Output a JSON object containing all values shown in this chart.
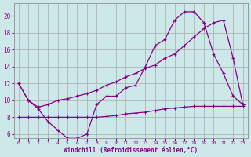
{
  "xlabel": "Windchill (Refroidissement éolien,°C)",
  "bg_color": "#cce8e8",
  "grid_color": "#aaaaaa",
  "line_color": "#880088",
  "xlim": [
    -0.5,
    23.5
  ],
  "ylim": [
    5.5,
    21.5
  ],
  "yticks": [
    6,
    8,
    10,
    12,
    14,
    16,
    18,
    20
  ],
  "xticks": [
    0,
    1,
    2,
    3,
    4,
    5,
    6,
    7,
    8,
    9,
    10,
    11,
    12,
    13,
    14,
    15,
    16,
    17,
    18,
    19,
    20,
    21,
    22,
    23
  ],
  "curve1_x": [
    0,
    1,
    2,
    3,
    4,
    5,
    6,
    7,
    8,
    9,
    10,
    11,
    12,
    13,
    14,
    15,
    16,
    17,
    18,
    19,
    20,
    21,
    22,
    23
  ],
  "curve1_y": [
    12,
    10,
    9,
    7.5,
    6.5,
    5.5,
    5.5,
    6.0,
    9.5,
    10.5,
    10.5,
    11.5,
    11.8,
    14,
    16.5,
    17.2,
    19.5,
    20.5,
    20.5,
    19.2,
    15.5,
    13.2,
    10.5,
    9.5
  ],
  "curve2_x": [
    0,
    1,
    2,
    3,
    4,
    5,
    6,
    7,
    8,
    9,
    10,
    11,
    12,
    13,
    14,
    15,
    16,
    17,
    18,
    19,
    20,
    21,
    22,
    23
  ],
  "curve2_y": [
    12,
    10,
    9.2,
    9.5,
    10.0,
    10.2,
    10.5,
    10.8,
    11.2,
    11.8,
    12.2,
    12.8,
    13.2,
    13.8,
    14.2,
    15.0,
    15.5,
    16.5,
    17.5,
    18.5,
    19.2,
    19.5,
    15.0,
    9.5
  ],
  "curve3_x": [
    0,
    1,
    2,
    3,
    4,
    5,
    6,
    7,
    8,
    9,
    10,
    11,
    12,
    13,
    14,
    15,
    16,
    17,
    18,
    19,
    20,
    21,
    22,
    23
  ],
  "curve3_y": [
    8,
    8,
    8,
    8,
    8,
    8,
    8,
    8,
    8,
    8.1,
    8.2,
    8.4,
    8.5,
    8.6,
    8.8,
    9.0,
    9.1,
    9.2,
    9.3,
    9.3,
    9.3,
    9.3,
    9.3,
    9.3
  ]
}
